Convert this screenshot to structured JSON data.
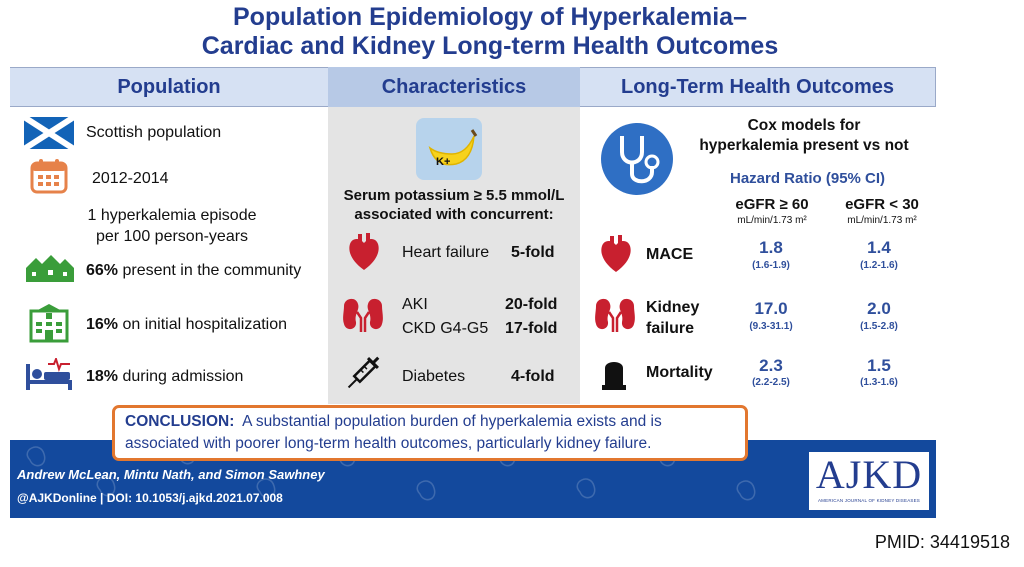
{
  "title": {
    "line1": "Population Epidemiology of Hyperkalemia–",
    "line2": "Cardiac and Kidney Long-term Health Outcomes"
  },
  "headers": {
    "population": "Population",
    "characteristics": "Characteristics",
    "outcomes": "Long-Term Health Outcomes"
  },
  "population": {
    "scottish": "Scottish population",
    "years": "2012-2014",
    "episode_line1": "1 hyperkalemia episode",
    "episode_line2": "per 100 person-years",
    "community_pct": "66%",
    "community_text": " present in the community",
    "hosp_pct": "16%",
    "hosp_text": " on initial hospitalization",
    "admission_pct": "18%",
    "admission_text": " during admission"
  },
  "characteristics": {
    "banana_label": "K+",
    "intro_line1": "Serum potassium ≥ 5.5 mmol/L",
    "intro_line2": "associated with concurrent:",
    "heart_failure_label": "Heart failure",
    "heart_failure_value": "5-fold",
    "aki_label": "AKI",
    "aki_value": "20-fold",
    "ckd_label": "CKD G4-G5",
    "ckd_value": "17-fold",
    "diabetes_label": "Diabetes",
    "diabetes_value": "4-fold"
  },
  "outcomes": {
    "cox_line1": "Cox models for",
    "cox_line2": "hyperkalemia present vs not",
    "hazard_ratio": "Hazard Ratio (95% CI)",
    "egfr_high": "eGFR ≥ 60",
    "egfr_low": "eGFR < 30",
    "unit": "mL/min/1.73 m²",
    "mace_label": "MACE",
    "mace_high": "1.8",
    "mace_high_ci": "(1.6-1.9)",
    "mace_low": "1.4",
    "mace_low_ci": "(1.2-1.6)",
    "kidney_label_line1": "Kidney",
    "kidney_label_line2": "failure",
    "kidney_high": "17.0",
    "kidney_high_ci": "(9.3-31.1)",
    "kidney_low": "2.0",
    "kidney_low_ci": "(1.5-2.8)",
    "mortality_label": "Mortality",
    "mortality_high": "2.3",
    "mortality_high_ci": "(2.2-2.5)",
    "mortality_low": "1.5",
    "mortality_low_ci": "(1.3-1.6)"
  },
  "conclusion": {
    "label": "CONCLUSION:",
    "text_line1": "A substantial population burden of hyperkalemia exists and is",
    "text_line2": "associated with poorer long-term health outcomes, particularly kidney failure."
  },
  "footer": {
    "authors": "Andrew McLean, Mintu Nath, and Simon Sawhney",
    "doi": "@AJKDonline | DOI: 10.1053/j.ajkd.2021.07.008",
    "logo": "AJKD",
    "logo_sub": "AMERICAN JOURNAL OF KIDNEY DISEASES"
  },
  "pmid": "PMID: 34419518",
  "colors": {
    "title_blue": "#233d8f",
    "value_blue": "#2f4f9c",
    "band_blue": "#13499d",
    "organ_red": "#c8202f",
    "conclusion_border": "#e2772f",
    "icon_orange": "#e6824a",
    "icon_green": "#3a9d3a",
    "banana_yellow": "#f7d21c"
  }
}
